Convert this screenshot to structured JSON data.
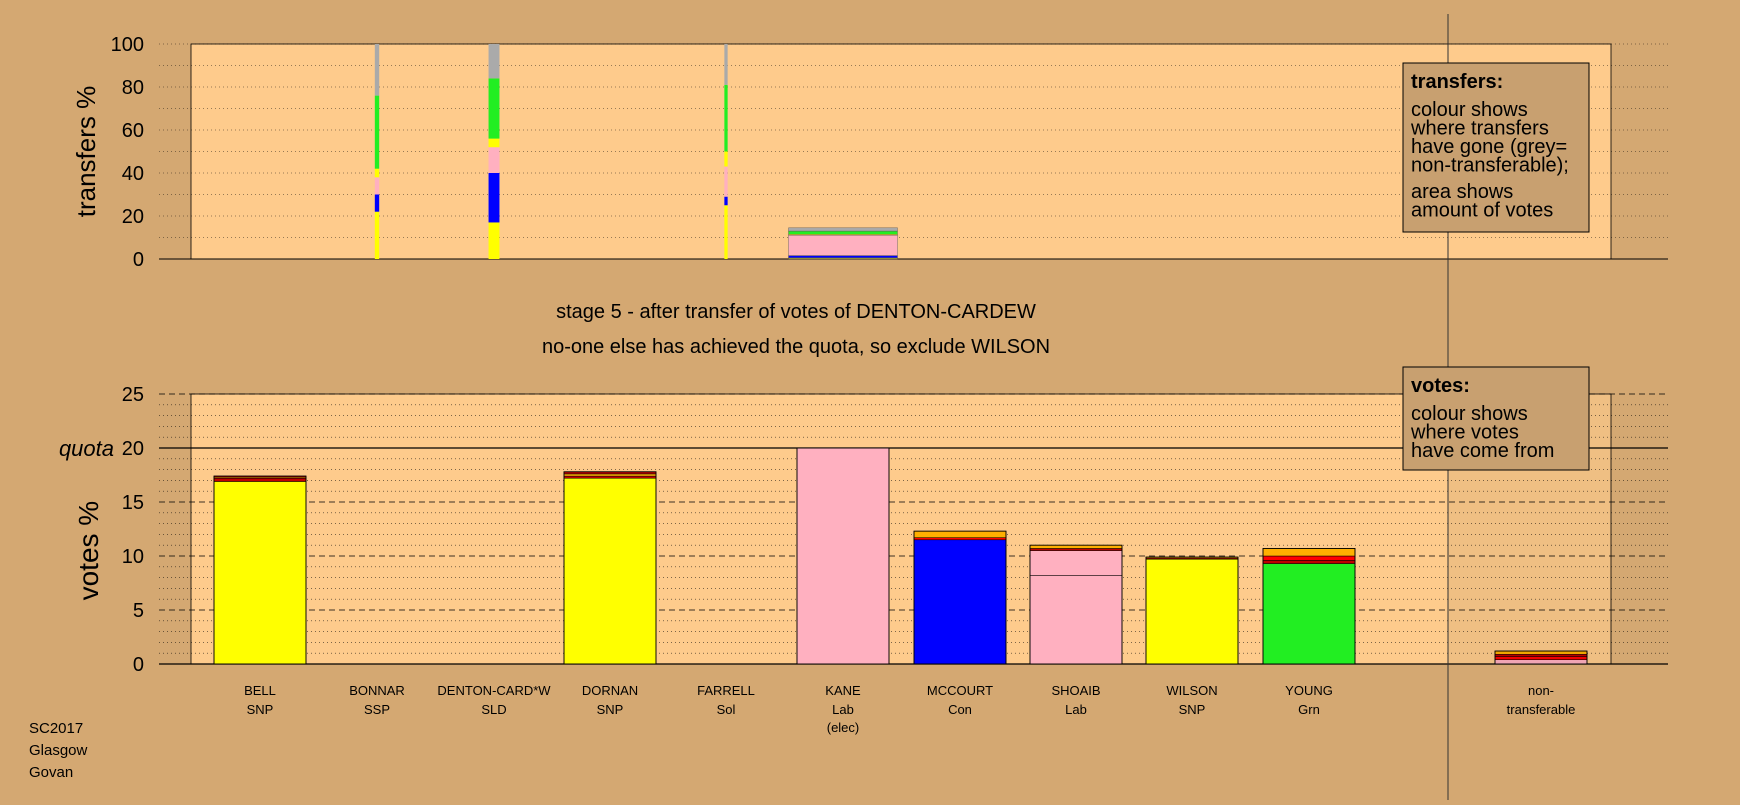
{
  "colors": {
    "page_bg": "#D4A872",
    "plot_bg": "#FECB8C",
    "legend_bg": "#C8A070",
    "SNP": "#FFFF00",
    "SSP": "#FF0000",
    "SLD": "#FFB000",
    "Lab": "#FFB0C0",
    "Con": "#0000FF",
    "Grn": "#22EE22",
    "Sol": "#C00000",
    "nontransferable": "#AAAAAA"
  },
  "stage_text": {
    "line1": "stage 5 - after transfer of votes of DENTON-CARDEW",
    "line2": "no-one else has achieved the quota, so exclude WILSON"
  },
  "footer": {
    "line1": "SC2017",
    "line2": "Glasgow",
    "line3": "Govan"
  },
  "legend_transfers": {
    "title": "transfers:",
    "body1": [
      "colour shows",
      "where transfers",
      "have gone (grey=",
      "non-transferable);"
    ],
    "body2": [
      "area shows",
      "amount of votes"
    ]
  },
  "legend_votes": {
    "title": "votes:",
    "body1": [
      "colour shows",
      "where votes",
      "have come from"
    ]
  },
  "chart_data": [
    {
      "type": "bar",
      "subtype": "stacked",
      "ylabel": "transfers %",
      "ylim": [
        0,
        100
      ],
      "yticks": [
        0,
        20,
        40,
        60,
        80,
        100
      ],
      "grid": true,
      "legend": "top-right",
      "note": "",
      "columns": [
        {
          "candidate": "BONNAR",
          "width_pct": 0.4,
          "segments": [
            {
              "to": "BELL",
              "party": "SNP",
              "value": 20
            },
            {
              "to": "DORNAN",
              "party": "SNP",
              "value": 2
            },
            {
              "to": "KANE",
              "party": "Lab",
              "value": 0
            },
            {
              "to": "MCCOURT",
              "party": "Con",
              "value": 8
            },
            {
              "to": "SHOAIB",
              "party": "Lab",
              "value": 8
            },
            {
              "to": "WILSON",
              "party": "SNP",
              "value": 4
            },
            {
              "to": "YOUNG",
              "party": "Grn",
              "value": 34
            },
            {
              "to": "non-transferable",
              "party": "nontransferable",
              "value": 24
            }
          ]
        },
        {
          "candidate": "DENTON-CARD*W",
          "width_pct": 1.0,
          "segments": [
            {
              "to": "BELL",
              "party": "SNP",
              "value": 17
            },
            {
              "to": "DORNAN",
              "party": "SNP",
              "value": 0
            },
            {
              "to": "KANE",
              "party": "Lab",
              "value": 0
            },
            {
              "to": "MCCOURT",
              "party": "Con",
              "value": 23
            },
            {
              "to": "SHOAIB",
              "party": "Lab",
              "value": 12
            },
            {
              "to": "WILSON",
              "party": "SNP",
              "value": 4
            },
            {
              "to": "YOUNG",
              "party": "Grn",
              "value": 28
            },
            {
              "to": "non-transferable",
              "party": "nontransferable",
              "value": 16
            }
          ]
        },
        {
          "candidate": "FARRELL",
          "width_pct": 0.3,
          "segments": [
            {
              "to": "BELL",
              "party": "SNP",
              "value": 25
            },
            {
              "to": "DORNAN",
              "party": "SNP",
              "value": 0
            },
            {
              "to": "KANE",
              "party": "Lab",
              "value": 0
            },
            {
              "to": "MCCOURT",
              "party": "Con",
              "value": 4
            },
            {
              "to": "SHOAIB",
              "party": "Lab",
              "value": 14
            },
            {
              "to": "WILSON",
              "party": "SNP",
              "value": 7
            },
            {
              "to": "YOUNG",
              "party": "Grn",
              "value": 31
            },
            {
              "to": "non-transferable",
              "party": "nontransferable",
              "value": 19
            }
          ]
        },
        {
          "candidate": "KANE",
          "width_pct": 10.0,
          "segments": [
            {
              "to": "BELL",
              "party": "SNP",
              "value": 0.3
            },
            {
              "to": "DORNAN",
              "party": "SNP",
              "value": 0.3
            },
            {
              "to": "MCCOURT",
              "party": "Con",
              "value": 1.0
            },
            {
              "to": "SHOAIB",
              "party": "Lab",
              "value": 9.5
            },
            {
              "to": "WILSON",
              "party": "SNP",
              "value": 0.4
            },
            {
              "to": "YOUNG",
              "party": "Grn",
              "value": 1.5
            },
            {
              "to": "non-transferable",
              "party": "nontransferable",
              "value": 1.5
            }
          ]
        }
      ]
    },
    {
      "type": "bar",
      "subtype": "stacked",
      "ylabel": "votes %",
      "ylim": [
        0,
        25
      ],
      "yticks": [
        0,
        5,
        10,
        15,
        20,
        25
      ],
      "quota_label": "quota",
      "quota": 20,
      "grid": true,
      "legend": "top-right",
      "categories": [
        "BELL",
        "BONNAR",
        "DENTON-CARD*W",
        "DORNAN",
        "FARRELL",
        "KANE",
        "MCCOURT",
        "SHOAIB",
        "WILSON",
        "YOUNG",
        "non-transferable"
      ],
      "bars": [
        {
          "name": "BELL",
          "party": "SNP",
          "status": "",
          "segments": [
            {
              "from": "SNP",
              "value": 16.9
            },
            {
              "from": "Sol",
              "value": 0.3
            },
            {
              "from": "SLD",
              "value": 0.1
            },
            {
              "from": "Sol",
              "value": 0.1
            }
          ]
        },
        {
          "name": "BONNAR",
          "party": "SSP",
          "status": "",
          "segments": []
        },
        {
          "name": "DENTON-CARD*W",
          "party": "SLD",
          "status": "",
          "segments": []
        },
        {
          "name": "DORNAN",
          "party": "SNP",
          "status": "",
          "segments": [
            {
              "from": "SNP",
              "value": 17.2
            },
            {
              "from": "Sol",
              "value": 0.2
            },
            {
              "from": "SLD",
              "value": 0.2
            },
            {
              "from": "Sol",
              "value": 0.2
            }
          ]
        },
        {
          "name": "FARRELL",
          "party": "Sol",
          "status": "",
          "segments": []
        },
        {
          "name": "KANE",
          "party": "Lab",
          "status": "(elec)",
          "segments": [
            {
              "from": "Lab",
              "value": 20.0
            }
          ]
        },
        {
          "name": "MCCOURT",
          "party": "Con",
          "status": "",
          "segments": [
            {
              "from": "Con",
              "value": 11.5
            },
            {
              "from": "SSP",
              "value": 0.2
            },
            {
              "from": "SLD",
              "value": 0.6
            }
          ]
        },
        {
          "name": "SHOAIB",
          "party": "Lab",
          "status": "",
          "segments": [
            {
              "from": "Lab",
              "value": 8.2
            },
            {
              "from": "Lab",
              "value": 2.3
            },
            {
              "from": "Sol",
              "value": 0.2
            },
            {
              "from": "SLD",
              "value": 0.3
            }
          ]
        },
        {
          "name": "WILSON",
          "party": "SNP",
          "status": "",
          "segments": [
            {
              "from": "SNP",
              "value": 9.7
            },
            {
              "from": "Sol",
              "value": 0.1
            },
            {
              "from": "SLD",
              "value": 0.1
            }
          ]
        },
        {
          "name": "YOUNG",
          "party": "Grn",
          "status": "",
          "segments": [
            {
              "from": "Grn",
              "value": 9.3
            },
            {
              "from": "Sol",
              "value": 0.3
            },
            {
              "from": "SSP",
              "value": 0.4
            },
            {
              "from": "SLD",
              "value": 0.7
            }
          ]
        },
        {
          "name": "non-transferable",
          "party": "",
          "status": "",
          "label_line1": "non-",
          "label_line2": "transferable",
          "segments": [
            {
              "from": "Lab",
              "value": 0.4
            },
            {
              "from": "SSP",
              "value": 0.3
            },
            {
              "from": "Sol",
              "value": 0.2
            },
            {
              "from": "SLD",
              "value": 0.3
            }
          ]
        }
      ]
    }
  ]
}
